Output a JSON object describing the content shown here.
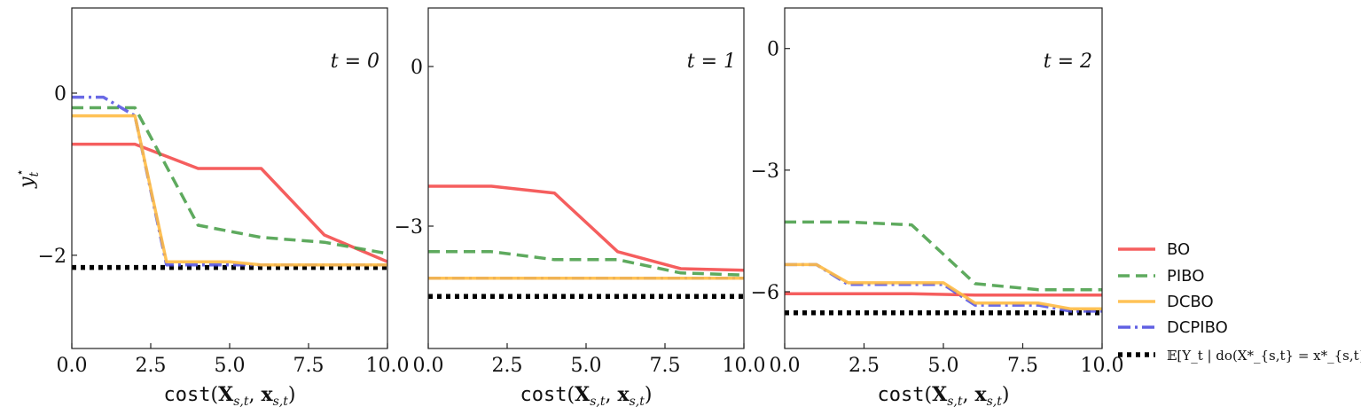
{
  "chart_data": [
    {
      "type": "line",
      "panel_label": "t = 0",
      "xlabel": "cost(X_{s,t}, x_{s,t})",
      "ylabel": "y_t^⋆",
      "xlim": [
        0,
        10
      ],
      "ylim": [
        -3.15,
        1.05
      ],
      "xticks": [
        0,
        2.5,
        5,
        7.5,
        10
      ],
      "xtick_labels": [
        "0.0",
        "2.5",
        "5.0",
        "7.5",
        "10.0"
      ],
      "yticks": [
        0,
        -2
      ],
      "ytick_labels": [
        "0",
        "−2"
      ],
      "series": [
        {
          "name": "BO",
          "x": [
            0,
            2,
            4,
            6,
            8,
            10
          ],
          "y": [
            -0.63,
            -0.63,
            -0.93,
            -0.93,
            -1.75,
            -2.08
          ]
        },
        {
          "name": "PIBO",
          "x": [
            0,
            2,
            4,
            6,
            8,
            10
          ],
          "y": [
            -0.18,
            -0.18,
            -1.63,
            -1.78,
            -1.84,
            -1.98
          ]
        },
        {
          "name": "DCBO",
          "x": [
            0,
            2,
            3,
            5,
            6,
            10
          ],
          "y": [
            -0.28,
            -0.28,
            -2.08,
            -2.08,
            -2.12,
            -2.12
          ]
        },
        {
          "name": "DCPIBO",
          "x": [
            0,
            1,
            2,
            3,
            10
          ],
          "y": [
            -0.05,
            -0.05,
            -0.28,
            -2.12,
            -2.12
          ]
        },
        {
          "name": "𝔼[Y_t | do(X*_{s,t} = x*_{s,t})]",
          "x": [
            0,
            10
          ],
          "y": [
            -2.15,
            -2.15
          ]
        }
      ]
    },
    {
      "type": "line",
      "panel_label": "t = 1",
      "xlabel": "cost(X_{s,t}, x_{s,t})",
      "xlim": [
        0,
        10
      ],
      "ylim": [
        -5.3,
        1.1
      ],
      "xticks": [
        0,
        2.5,
        5,
        7.5,
        10
      ],
      "xtick_labels": [
        "0.0",
        "2.5",
        "5.0",
        "7.5",
        "10.0"
      ],
      "yticks": [
        0,
        -3
      ],
      "ytick_labels": [
        "0",
        "−3"
      ],
      "series": [
        {
          "name": "BO",
          "x": [
            0,
            2,
            4,
            6,
            8,
            10
          ],
          "y": [
            -2.25,
            -2.25,
            -2.38,
            -3.48,
            -3.8,
            -3.83
          ]
        },
        {
          "name": "PIBO",
          "x": [
            0,
            2,
            4,
            6,
            8,
            10
          ],
          "y": [
            -3.48,
            -3.48,
            -3.63,
            -3.63,
            -3.88,
            -3.92
          ]
        },
        {
          "name": "DCBO",
          "x": [
            0,
            10
          ],
          "y": [
            -3.98,
            -3.98
          ]
        },
        {
          "name": "DCPIBO",
          "x": [
            0,
            10
          ],
          "y": [
            -3.98,
            -3.98
          ]
        },
        {
          "name": "𝔼[Y_t | do(X*_{s,t} = x*_{s,t})]",
          "x": [
            0,
            10
          ],
          "y": [
            -4.32,
            -4.32
          ]
        }
      ]
    },
    {
      "type": "line",
      "panel_label": "t = 2",
      "xlabel": "cost(X_{s,t}, x_{s,t})",
      "xlim": [
        0,
        10
      ],
      "ylim": [
        -7.4,
        1.0
      ],
      "xticks": [
        0,
        2.5,
        5,
        7.5,
        10
      ],
      "xtick_labels": [
        "0.0",
        "2.5",
        "5.0",
        "7.5",
        "10.0"
      ],
      "yticks": [
        0,
        -3,
        -6
      ],
      "ytick_labels": [
        "0",
        "−3",
        "−6"
      ],
      "series": [
        {
          "name": "BO",
          "x": [
            0,
            2,
            4,
            6,
            10
          ],
          "y": [
            -6.05,
            -6.05,
            -6.05,
            -6.08,
            -6.08
          ]
        },
        {
          "name": "PIBO",
          "x": [
            0,
            2,
            4,
            6,
            8,
            10
          ],
          "y": [
            -4.28,
            -4.28,
            -4.35,
            -5.8,
            -5.95,
            -5.95
          ]
        },
        {
          "name": "DCBO",
          "x": [
            0,
            1,
            2,
            5,
            6,
            8,
            9,
            10
          ],
          "y": [
            -5.33,
            -5.33,
            -5.78,
            -5.78,
            -6.28,
            -6.28,
            -6.42,
            -6.42
          ]
        },
        {
          "name": "DCPIBO",
          "x": [
            0,
            1,
            2,
            5,
            6,
            8,
            9,
            10
          ],
          "y": [
            -5.33,
            -5.33,
            -5.82,
            -5.82,
            -6.33,
            -6.33,
            -6.48,
            -6.48
          ]
        },
        {
          "name": "𝔼[Y_t | do(X*_{s,t} = x*_{s,t})]",
          "x": [
            0,
            10
          ],
          "y": [
            -6.52,
            -6.52
          ]
        }
      ]
    }
  ],
  "legend": {
    "placement": "right",
    "entries": [
      {
        "name": "BO",
        "color": "#f44c4c",
        "style": "solid"
      },
      {
        "name": "PIBO",
        "color": "#4ca14c",
        "style": "dashed"
      },
      {
        "name": "DCBO",
        "color": "#ffbb44",
        "style": "solid"
      },
      {
        "name": "DCPIBO",
        "color": "#5050e0",
        "style": "dashdot"
      },
      {
        "name": "𝔼[Y_t | do(X*_{s,t} = x*_{s,t})]",
        "color": "#000000",
        "style": "dotted"
      }
    ]
  }
}
